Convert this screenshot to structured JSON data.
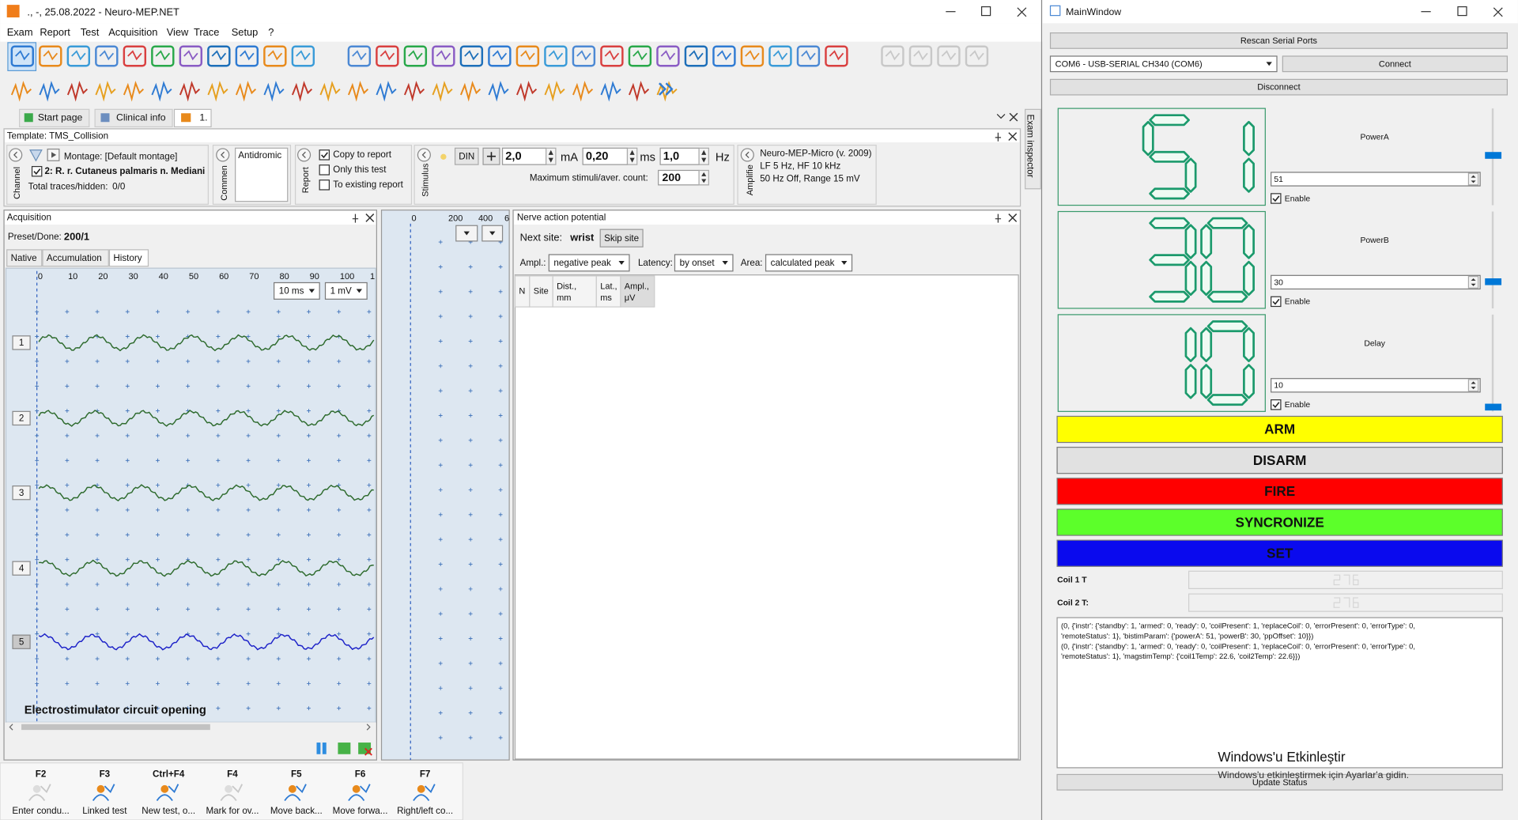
{
  "left": {
    "title": "., -, 25.08.2022 - Neuro-MEP.NET",
    "menu": [
      "Exam",
      "Report",
      "Test",
      "Acquisition",
      "View",
      "Trace",
      "Setup",
      "?"
    ],
    "tabs": [
      "Start page",
      "Clinical info",
      "1."
    ],
    "template": "Template: TMS_Collision",
    "channel": {
      "label": "Channel",
      "montage": "Montage: [Default montage]",
      "item": "2: R. r. Cutaneus palmaris n. Mediani",
      "total_label": "Total traces/hidden:",
      "total": "0/0"
    },
    "comment": {
      "label": "Commen",
      "value": "Antidromic"
    },
    "report": {
      "label": "Report",
      "options": [
        "Copy to report",
        "Only this test",
        "To existing report"
      ]
    },
    "stimulus": {
      "label": "Stimulus",
      "mode": "DIN",
      "current": "2,0",
      "current_unit": "mA",
      "duration": "0,20",
      "duration_unit": "ms",
      "frequency": "1,0",
      "frequency_unit": "Hz",
      "max_label": "Maximum stimuli/aver. count:",
      "max": "200"
    },
    "amplifier": {
      "label": "Amplifie",
      "lines": [
        "Neuro-MEP-Micro (v. 2009)",
        "LF  5 Hz, HF  10 kHz",
        "50 Hz  Off,  Range  15 mV"
      ]
    },
    "acquisition": {
      "title": "Acquisition",
      "preset_label": "Preset/Done:",
      "preset": "200/1",
      "tabs": [
        "Native",
        "Accumulation",
        "History"
      ],
      "axis": [
        "0",
        "10",
        "20",
        "30",
        "40",
        "50",
        "60",
        "70",
        "80",
        "90",
        "100",
        "1"
      ],
      "time_scale": "10 ms",
      "amp_scale": "1 mV",
      "traces": [
        "1",
        "2",
        "3",
        "4",
        "5"
      ],
      "message": "Electrostimulator circuit opening"
    },
    "overview_axis": [
      "0",
      "200",
      "400",
      "6"
    ],
    "nerve": {
      "title": "Nerve action potential",
      "next_label": "Next site:",
      "next": "wrist",
      "skip": "Skip site",
      "ampl_label": "Ampl.:",
      "ampl": "negative peak",
      "latency_label": "Latency:",
      "latency": "by onset",
      "area_label": "Area:",
      "area": "calculated peak",
      "columns": [
        [
          "N"
        ],
        [
          "Site"
        ],
        [
          "Dist.,",
          "mm"
        ],
        [
          "Lat.,",
          "ms"
        ],
        [
          "Ampl.,",
          "μV"
        ]
      ]
    },
    "side_tab": "Exam inspector",
    "shortcuts": [
      {
        "key": "F2",
        "label": "Enter condu..."
      },
      {
        "key": "F3",
        "label": "Linked test"
      },
      {
        "key": "Ctrl+F4",
        "label": "New test, o..."
      },
      {
        "key": "F4",
        "label": "Mark for ov..."
      },
      {
        "key": "F5",
        "label": "Move back..."
      },
      {
        "key": "F6",
        "label": "Move forwa..."
      },
      {
        "key": "F7",
        "label": "Right/left co..."
      }
    ]
  },
  "right": {
    "title": "MainWindow",
    "rescan": "Rescan Serial Ports",
    "port": "COM6 - USB-SERIAL CH340 (COM6)",
    "connect": "Connect",
    "disconnect": "Disconnect",
    "channels": [
      {
        "display": "51",
        "label": "PowerA",
        "input": "51",
        "enable": "Enable"
      },
      {
        "display": "30",
        "label": "PowerB",
        "input": "30",
        "enable": "Enable"
      },
      {
        "display": "10",
        "label": "Delay",
        "input": "10",
        "enable": "Enable"
      }
    ],
    "buttons": [
      "ARM",
      "DISARM",
      "FIRE",
      "SYNCRONIZE",
      "SET"
    ],
    "coils": [
      "Coil 1 T",
      "Coil 2 T:"
    ],
    "log": [
      "(0, {'instr': {'standby': 1, 'armed': 0, 'ready': 0, 'coilPresent': 1, 'replaceCoil': 0, 'errorPresent': 0, 'errorType': 0,",
      "'remoteStatus': 1}, 'bistimParam': {'powerA': 51, 'powerB': 30, 'ppOffset': 10}})",
      "(0, {'instr': {'standby': 1, 'armed': 0, 'ready': 0, 'coilPresent': 1, 'replaceCoil': 0, 'errorPresent': 0, 'errorType': 0,",
      "'remoteStatus': 1}, 'magstimTemp': {'coil1Temp': 22.6, 'coil2Temp': 22.6}})"
    ],
    "watermark": [
      "Windows'u Etkinleştir",
      "Windows'u etkinleştirmek için Ayarlar'a gidin."
    ],
    "update": "Update Status"
  }
}
